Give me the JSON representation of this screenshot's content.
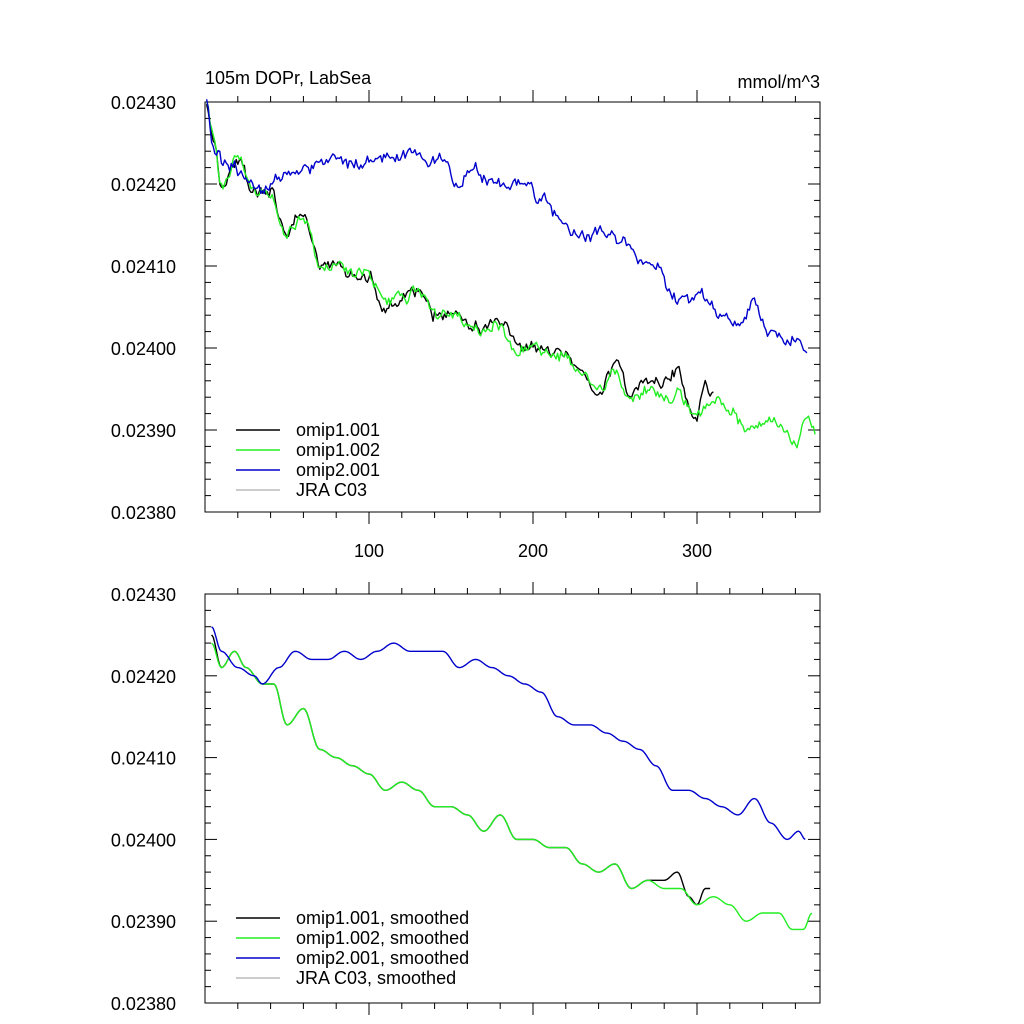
{
  "chart_data": [
    {
      "type": "line",
      "title": "105m DOPr, LabSea",
      "units": "mmol/m^3",
      "xlim": [
        0,
        375
      ],
      "ylim": [
        0.0238,
        0.0243
      ],
      "yticks": [
        "0.02380",
        "0.02390",
        "0.02400",
        "0.02410",
        "0.02420",
        "0.02430"
      ],
      "xticks": [
        "100",
        "200",
        "300"
      ],
      "legend": [
        "omip1.001",
        "omip1.002",
        "omip2.001",
        "JRA C03"
      ],
      "series": [
        {
          "name": "omip1.001",
          "color": "#000000",
          "keys": [
            [
              1,
              0.0243
            ],
            [
              5,
              0.02426
            ],
            [
              10,
              0.0242
            ],
            [
              20,
              0.02423
            ],
            [
              30,
              0.02419
            ],
            [
              40,
              0.02419
            ],
            [
              50,
              0.02414
            ],
            [
              60,
              0.02416
            ],
            [
              70,
              0.0241
            ],
            [
              80,
              0.0241
            ],
            [
              90,
              0.02409
            ],
            [
              100,
              0.02409
            ],
            [
              110,
              0.02405
            ],
            [
              120,
              0.02406
            ],
            [
              130,
              0.02407
            ],
            [
              140,
              0.02404
            ],
            [
              150,
              0.02404
            ],
            [
              160,
              0.02403
            ],
            [
              170,
              0.02402
            ],
            [
              180,
              0.02403
            ],
            [
              190,
              0.024
            ],
            [
              200,
              0.024
            ],
            [
              210,
              0.02399
            ],
            [
              220,
              0.02399
            ],
            [
              230,
              0.02397
            ],
            [
              240,
              0.02395
            ],
            [
              250,
              0.02398
            ],
            [
              260,
              0.02394
            ],
            [
              270,
              0.02396
            ],
            [
              280,
              0.02396
            ],
            [
              288,
              0.02397
            ],
            [
              295,
              0.02393
            ],
            [
              300,
              0.02392
            ],
            [
              305,
              0.02396
            ],
            [
              310,
              0.02394
            ]
          ]
        },
        {
          "name": "omip1.002",
          "color": "#22ee22",
          "keys": [
            [
              1,
              0.0243
            ],
            [
              5,
              0.02426
            ],
            [
              10,
              0.0242
            ],
            [
              20,
              0.02423
            ],
            [
              30,
              0.02419
            ],
            [
              40,
              0.02419
            ],
            [
              50,
              0.02414
            ],
            [
              60,
              0.02416
            ],
            [
              70,
              0.0241
            ],
            [
              80,
              0.0241
            ],
            [
              90,
              0.02409
            ],
            [
              100,
              0.02409
            ],
            [
              110,
              0.02405
            ],
            [
              120,
              0.02406
            ],
            [
              130,
              0.02407
            ],
            [
              140,
              0.02404
            ],
            [
              150,
              0.02404
            ],
            [
              160,
              0.02403
            ],
            [
              170,
              0.02402
            ],
            [
              180,
              0.02403
            ],
            [
              190,
              0.024
            ],
            [
              200,
              0.024
            ],
            [
              210,
              0.02399
            ],
            [
              220,
              0.02399
            ],
            [
              230,
              0.02397
            ],
            [
              240,
              0.02395
            ],
            [
              250,
              0.02397
            ],
            [
              260,
              0.02394
            ],
            [
              270,
              0.02395
            ],
            [
              280,
              0.02394
            ],
            [
              290,
              0.02394
            ],
            [
              300,
              0.02392
            ],
            [
              310,
              0.02393
            ],
            [
              320,
              0.02393
            ],
            [
              330,
              0.0239
            ],
            [
              340,
              0.02391
            ],
            [
              350,
              0.02391
            ],
            [
              360,
              0.02388
            ],
            [
              368,
              0.02392
            ],
            [
              372,
              0.0239
            ]
          ]
        },
        {
          "name": "omip2.001",
          "color": "#0000cc",
          "keys": [
            [
              1,
              0.0243
            ],
            [
              5,
              0.02424
            ],
            [
              15,
              0.02422
            ],
            [
              25,
              0.02421
            ],
            [
              35,
              0.02419
            ],
            [
              45,
              0.02421
            ],
            [
              55,
              0.02422
            ],
            [
              65,
              0.02422
            ],
            [
              75,
              0.02423
            ],
            [
              85,
              0.02422
            ],
            [
              95,
              0.02422
            ],
            [
              105,
              0.02423
            ],
            [
              115,
              0.02423
            ],
            [
              125,
              0.02424
            ],
            [
              135,
              0.02423
            ],
            [
              145,
              0.02423
            ],
            [
              155,
              0.0242
            ],
            [
              165,
              0.02422
            ],
            [
              175,
              0.0242
            ],
            [
              185,
              0.0242
            ],
            [
              195,
              0.0242
            ],
            [
              205,
              0.02418
            ],
            [
              215,
              0.02416
            ],
            [
              225,
              0.02414
            ],
            [
              235,
              0.02414
            ],
            [
              245,
              0.02414
            ],
            [
              255,
              0.02413
            ],
            [
              265,
              0.02411
            ],
            [
              275,
              0.0241
            ],
            [
              285,
              0.02406
            ],
            [
              295,
              0.02406
            ],
            [
              305,
              0.02406
            ],
            [
              315,
              0.02404
            ],
            [
              325,
              0.02403
            ],
            [
              335,
              0.02405
            ],
            [
              345,
              0.02402
            ],
            [
              355,
              0.02401
            ],
            [
              362,
              0.02401
            ],
            [
              367,
              0.02399
            ]
          ]
        },
        {
          "name": "JRA C03",
          "color": "#bbbbbb",
          "keys": []
        }
      ]
    },
    {
      "type": "line",
      "title": "",
      "xlim": [
        0,
        375
      ],
      "ylim": [
        0.0238,
        0.0243
      ],
      "yticks": [
        "0.02380",
        "0.02390",
        "0.02400",
        "0.02410",
        "0.02420",
        "0.02430"
      ],
      "legend": [
        "omip1.001, smoothed",
        "omip1.002, smoothed",
        "omip2.001, smoothed",
        "JRA C03, smoothed"
      ],
      "series": [
        {
          "name": "omip1.001, smoothed",
          "color": "#000000",
          "keys": [
            [
              4,
              0.02425
            ],
            [
              10,
              0.02421
            ],
            [
              18,
              0.02423
            ],
            [
              25,
              0.02421
            ],
            [
              35,
              0.02419
            ],
            [
              42,
              0.02419
            ],
            [
              50,
              0.02414
            ],
            [
              60,
              0.02416
            ],
            [
              70,
              0.02411
            ],
            [
              80,
              0.0241
            ],
            [
              90,
              0.02409
            ],
            [
              100,
              0.02408
            ],
            [
              110,
              0.02406
            ],
            [
              120,
              0.02407
            ],
            [
              130,
              0.02406
            ],
            [
              140,
              0.02404
            ],
            [
              150,
              0.02404
            ],
            [
              160,
              0.02403
            ],
            [
              170,
              0.02401
            ],
            [
              180,
              0.02403
            ],
            [
              190,
              0.024
            ],
            [
              200,
              0.024
            ],
            [
              210,
              0.02399
            ],
            [
              220,
              0.02399
            ],
            [
              230,
              0.02397
            ],
            [
              240,
              0.02396
            ],
            [
              250,
              0.02397
            ],
            [
              260,
              0.02394
            ],
            [
              270,
              0.02395
            ],
            [
              280,
              0.02395
            ],
            [
              288,
              0.02396
            ],
            [
              295,
              0.02393
            ],
            [
              300,
              0.02392
            ],
            [
              305,
              0.02394
            ],
            [
              308,
              0.02394
            ]
          ]
        },
        {
          "name": "omip1.002, smoothed",
          "color": "#22ee22",
          "keys": [
            [
              4,
              0.02424
            ],
            [
              10,
              0.02421
            ],
            [
              18,
              0.02423
            ],
            [
              25,
              0.02421
            ],
            [
              35,
              0.02419
            ],
            [
              42,
              0.02419
            ],
            [
              50,
              0.02414
            ],
            [
              60,
              0.02416
            ],
            [
              70,
              0.02411
            ],
            [
              80,
              0.0241
            ],
            [
              90,
              0.02409
            ],
            [
              100,
              0.02408
            ],
            [
              110,
              0.02406
            ],
            [
              120,
              0.02407
            ],
            [
              130,
              0.02406
            ],
            [
              140,
              0.02404
            ],
            [
              150,
              0.02404
            ],
            [
              160,
              0.02403
            ],
            [
              170,
              0.02401
            ],
            [
              180,
              0.02403
            ],
            [
              190,
              0.024
            ],
            [
              200,
              0.024
            ],
            [
              210,
              0.02399
            ],
            [
              220,
              0.02399
            ],
            [
              230,
              0.02397
            ],
            [
              240,
              0.02396
            ],
            [
              250,
              0.02397
            ],
            [
              260,
              0.02394
            ],
            [
              270,
              0.02395
            ],
            [
              280,
              0.02394
            ],
            [
              290,
              0.02394
            ],
            [
              300,
              0.02392
            ],
            [
              310,
              0.02393
            ],
            [
              320,
              0.02392
            ],
            [
              330,
              0.0239
            ],
            [
              340,
              0.02391
            ],
            [
              350,
              0.02391
            ],
            [
              358,
              0.02389
            ],
            [
              365,
              0.02389
            ],
            [
              370,
              0.02391
            ]
          ]
        },
        {
          "name": "omip2.001, smoothed",
          "color": "#0000cc",
          "keys": [
            [
              4,
              0.02426
            ],
            [
              10,
              0.02423
            ],
            [
              20,
              0.02421
            ],
            [
              30,
              0.0242
            ],
            [
              35,
              0.02419
            ],
            [
              45,
              0.02421
            ],
            [
              55,
              0.02423
            ],
            [
              65,
              0.02422
            ],
            [
              75,
              0.02422
            ],
            [
              85,
              0.02423
            ],
            [
              95,
              0.02422
            ],
            [
              105,
              0.02423
            ],
            [
              115,
              0.02424
            ],
            [
              125,
              0.02423
            ],
            [
              135,
              0.02423
            ],
            [
              145,
              0.02423
            ],
            [
              155,
              0.02421
            ],
            [
              165,
              0.02422
            ],
            [
              175,
              0.02421
            ],
            [
              185,
              0.0242
            ],
            [
              195,
              0.02419
            ],
            [
              205,
              0.02418
            ],
            [
              215,
              0.02415
            ],
            [
              225,
              0.02414
            ],
            [
              235,
              0.02414
            ],
            [
              245,
              0.02413
            ],
            [
              255,
              0.02412
            ],
            [
              265,
              0.02411
            ],
            [
              275,
              0.02409
            ],
            [
              285,
              0.02406
            ],
            [
              295,
              0.02406
            ],
            [
              305,
              0.02405
            ],
            [
              315,
              0.02404
            ],
            [
              325,
              0.02403
            ],
            [
              335,
              0.02405
            ],
            [
              345,
              0.02402
            ],
            [
              355,
              0.024
            ],
            [
              362,
              0.02401
            ],
            [
              366,
              0.024
            ]
          ]
        },
        {
          "name": "JRA C03, smoothed",
          "color": "#bbbbbb",
          "keys": []
        }
      ]
    }
  ]
}
